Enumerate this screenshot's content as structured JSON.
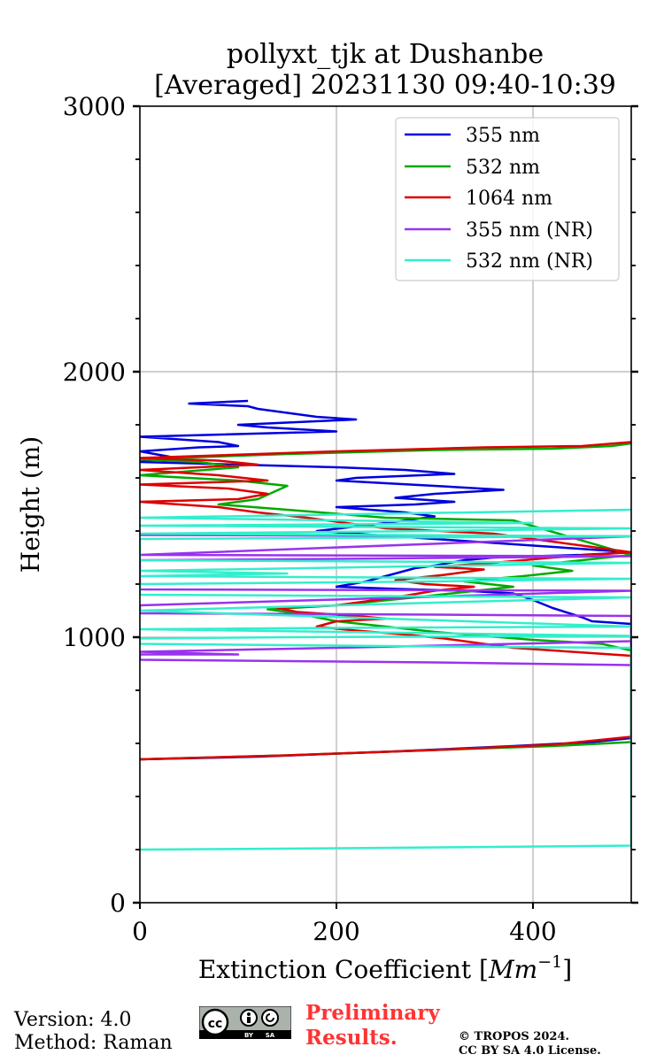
{
  "chart_data": {
    "type": "line",
    "title_line1": "pollyxt_tjk at Dushanbe",
    "title_line2": "[Averaged] 20231130 09:40-10:39",
    "xlabel_main": "Extinction Coefficient [",
    "xlabel_unit": "Mm",
    "xlabel_exp": "−1",
    "xlabel_close": "]",
    "ylabel": "Height (m)",
    "xlim": [
      0,
      500
    ],
    "ylim": [
      0,
      3000
    ],
    "xticks": [
      "0",
      "200",
      "400"
    ],
    "xtick_values": [
      0,
      200,
      400
    ],
    "yticks": [
      "0",
      "1000",
      "2000",
      "3000"
    ],
    "ytick_values": [
      0,
      1000,
      2000,
      3000
    ],
    "grid": true,
    "legend_position": "top-right",
    "series": [
      {
        "name": "355 nm",
        "color": "#0000dd",
        "points": [
          [
            0,
            540
          ],
          [
            120,
            550
          ],
          [
            260,
            570
          ],
          [
            380,
            590
          ],
          [
            460,
            605
          ],
          [
            500,
            620
          ],
          [
            500,
            1000
          ],
          [
            500,
            1050
          ],
          [
            460,
            1060
          ],
          [
            450,
            1075
          ],
          [
            420,
            1110
          ],
          [
            400,
            1140
          ],
          [
            380,
            1165
          ],
          [
            330,
            1175
          ],
          [
            260,
            1182
          ],
          [
            200,
            1190
          ],
          [
            230,
            1210
          ],
          [
            260,
            1240
          ],
          [
            280,
            1260
          ],
          [
            300,
            1270
          ],
          [
            330,
            1290
          ],
          [
            360,
            1300
          ],
          [
            400,
            1305
          ],
          [
            450,
            1310
          ],
          [
            500,
            1320
          ],
          [
            180,
            1400
          ],
          [
            250,
            1430
          ],
          [
            300,
            1455
          ],
          [
            270,
            1470
          ],
          [
            200,
            1490
          ],
          [
            280,
            1500
          ],
          [
            320,
            1510
          ],
          [
            260,
            1525
          ],
          [
            300,
            1540
          ],
          [
            370,
            1555
          ],
          [
            300,
            1570
          ],
          [
            250,
            1580
          ],
          [
            200,
            1590
          ],
          [
            220,
            1600
          ],
          [
            320,
            1615
          ],
          [
            270,
            1630
          ],
          [
            200,
            1640
          ],
          [
            100,
            1650
          ],
          [
            0,
            1660
          ],
          [
            30,
            1680
          ],
          [
            0,
            1700
          ],
          [
            60,
            1715
          ],
          [
            100,
            1720
          ],
          [
            80,
            1735
          ],
          [
            0,
            1755
          ],
          [
            200,
            1775
          ],
          [
            130,
            1790
          ],
          [
            100,
            1800
          ],
          [
            220,
            1820
          ],
          [
            180,
            1830
          ],
          [
            150,
            1845
          ],
          [
            120,
            1860
          ],
          [
            110,
            1870
          ],
          [
            50,
            1880
          ],
          [
            110,
            1890
          ]
        ]
      },
      {
        "name": "532 nm",
        "color": "#00aa00",
        "points": [
          [
            0,
            540
          ],
          [
            150,
            555
          ],
          [
            300,
            575
          ],
          [
            420,
            590
          ],
          [
            500,
            605
          ],
          [
            500,
            950
          ],
          [
            470,
            975
          ],
          [
            400,
            990
          ],
          [
            350,
            1005
          ],
          [
            300,
            1020
          ],
          [
            250,
            1040
          ],
          [
            200,
            1060
          ],
          [
            160,
            1090
          ],
          [
            130,
            1105
          ],
          [
            200,
            1120
          ],
          [
            280,
            1150
          ],
          [
            330,
            1170
          ],
          [
            380,
            1190
          ],
          [
            330,
            1210
          ],
          [
            390,
            1230
          ],
          [
            440,
            1250
          ],
          [
            400,
            1270
          ],
          [
            450,
            1290
          ],
          [
            500,
            1310
          ],
          [
            380,
            1440
          ],
          [
            250,
            1450
          ],
          [
            150,
            1480
          ],
          [
            80,
            1500
          ],
          [
            120,
            1520
          ],
          [
            150,
            1570
          ],
          [
            100,
            1590
          ],
          [
            50,
            1600
          ],
          [
            0,
            1610
          ],
          [
            100,
            1640
          ],
          [
            60,
            1660
          ],
          [
            0,
            1670
          ],
          [
            150,
            1690
          ],
          [
            300,
            1705
          ],
          [
            420,
            1710
          ],
          [
            480,
            1720
          ],
          [
            500,
            1730
          ]
        ]
      },
      {
        "name": "1064 nm",
        "color": "#dd0000",
        "points": [
          [
            0,
            540
          ],
          [
            150,
            555
          ],
          [
            300,
            575
          ],
          [
            420,
            595
          ],
          [
            500,
            625
          ],
          [
            500,
            930
          ],
          [
            440,
            945
          ],
          [
            380,
            960
          ],
          [
            340,
            980
          ],
          [
            310,
            995
          ],
          [
            270,
            1010
          ],
          [
            220,
            1025
          ],
          [
            180,
            1040
          ],
          [
            200,
            1060
          ],
          [
            250,
            1070
          ],
          [
            220,
            1080
          ],
          [
            160,
            1095
          ],
          [
            140,
            1110
          ],
          [
            200,
            1120
          ],
          [
            260,
            1150
          ],
          [
            300,
            1175
          ],
          [
            340,
            1190
          ],
          [
            290,
            1200
          ],
          [
            260,
            1215
          ],
          [
            310,
            1235
          ],
          [
            350,
            1255
          ],
          [
            300,
            1265
          ],
          [
            360,
            1280
          ],
          [
            420,
            1300
          ],
          [
            500,
            1320
          ],
          [
            360,
            1390
          ],
          [
            250,
            1410
          ],
          [
            170,
            1450
          ],
          [
            120,
            1470
          ],
          [
            80,
            1490
          ],
          [
            0,
            1510
          ],
          [
            100,
            1520
          ],
          [
            130,
            1540
          ],
          [
            90,
            1560
          ],
          [
            0,
            1575
          ],
          [
            130,
            1590
          ],
          [
            80,
            1610
          ],
          [
            0,
            1630
          ],
          [
            120,
            1650
          ],
          [
            80,
            1665
          ],
          [
            0,
            1675
          ],
          [
            200,
            1700
          ],
          [
            350,
            1715
          ],
          [
            450,
            1720
          ],
          [
            500,
            1735
          ]
        ]
      },
      {
        "name": "355 nm (NR)",
        "color": "#9933ee",
        "points": [
          [
            500,
            895
          ],
          [
            300,
            905
          ],
          [
            0,
            915
          ],
          [
            0,
            935
          ],
          [
            100,
            935
          ],
          [
            0,
            945
          ],
          [
            200,
            960
          ],
          [
            500,
            985
          ],
          [
            500,
            1080
          ],
          [
            300,
            1085
          ],
          [
            0,
            1090
          ],
          [
            0,
            1110
          ],
          [
            0,
            1120
          ],
          [
            500,
            1175
          ],
          [
            0,
            1180
          ],
          [
            0,
            1290
          ],
          [
            200,
            1295
          ],
          [
            500,
            1305
          ],
          [
            0,
            1310
          ],
          [
            500,
            1380
          ],
          [
            0,
            1385
          ]
        ]
      },
      {
        "name": "532 nm (NR)",
        "color": "#33eecc",
        "points": [
          [
            0,
            200
          ],
          [
            200,
            205
          ],
          [
            500,
            215
          ],
          [
            500,
            960
          ],
          [
            300,
            965
          ],
          [
            0,
            975
          ],
          [
            0,
            995
          ],
          [
            150,
            1000
          ],
          [
            500,
            1005
          ],
          [
            0,
            1030
          ],
          [
            200,
            1035
          ],
          [
            500,
            1040
          ],
          [
            0,
            1100
          ],
          [
            500,
            1150
          ],
          [
            0,
            1160
          ],
          [
            0,
            1200
          ],
          [
            300,
            1210
          ],
          [
            500,
            1220
          ],
          [
            0,
            1230
          ],
          [
            150,
            1240
          ],
          [
            0,
            1250
          ],
          [
            500,
            1280
          ],
          [
            0,
            1290
          ],
          [
            0,
            1370
          ],
          [
            500,
            1380
          ],
          [
            0,
            1390
          ],
          [
            300,
            1400
          ],
          [
            500,
            1410
          ],
          [
            0,
            1420
          ],
          [
            400,
            1430
          ],
          [
            0,
            1450
          ],
          [
            500,
            1480
          ]
        ]
      }
    ]
  },
  "footer": {
    "version": "Version: 4.0",
    "method": "Method: Raman",
    "preliminary_line1": "Preliminary",
    "preliminary_line2": "Results.",
    "copyright_line1": "© TROPOS 2024.",
    "copyright_line2": "CC BY SA 4.0 License.",
    "badge_by": "BY",
    "badge_sa": "SA",
    "badge_cc": "cc"
  }
}
